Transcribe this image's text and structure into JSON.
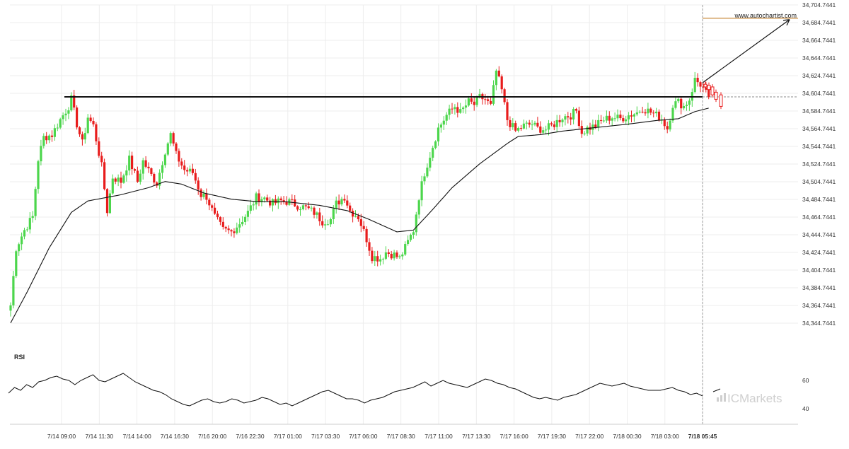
{
  "chart_data": {
    "type": "candlestick",
    "watermark_url": "www.autochartist.com",
    "brand": "ICMarkets",
    "colors": {
      "up": "#4CD64C",
      "down": "#E81C1C",
      "ma": "#111111",
      "resistance": "#111111",
      "forecast": "#111111",
      "target_marker": "#C88A3A",
      "rsi": "#111111",
      "grid": "#EDEDED",
      "axis_text": "#333333"
    },
    "price_axis": {
      "min": 34336.7441,
      "max": 34704.7441,
      "ticks": [
        "34,704.7441",
        "34,684.7441",
        "34,664.7441",
        "34,644.7441",
        "34,624.7441",
        "34,604.7441",
        "34,584.7441",
        "34,564.7441",
        "34,544.7441",
        "34,524.7441",
        "34,504.7441",
        "34,484.7441",
        "34,464.7441",
        "34,444.7441",
        "34,424.7441",
        "34,404.7441",
        "34,384.7441",
        "34,364.7441",
        "34,344.7441"
      ]
    },
    "time_axis": {
      "labels": [
        "7/14 09:00",
        "7/14 11:30",
        "7/14 14:00",
        "7/14 16:30",
        "7/16 20:00",
        "7/16 22:30",
        "7/17 01:00",
        "7/17 03:30",
        "7/17 06:00",
        "7/17 08:30",
        "7/17 11:00",
        "7/17 13:30",
        "7/17 16:00",
        "7/17 19:30",
        "7/17 22:00",
        "7/18 00:30",
        "7/18 03:00",
        "7/18 05:45"
      ],
      "highlight_label": "7/18 05:45"
    },
    "resistance_level": 34600.7441,
    "current_price": 34600.7441,
    "forecast_target": 34689.7441,
    "price_anchors": [
      [
        0,
        34365
      ],
      [
        2,
        34430
      ],
      [
        5,
        34450
      ],
      [
        8,
        34465
      ],
      [
        10,
        34530
      ],
      [
        12,
        34555
      ],
      [
        15,
        34558
      ],
      [
        18,
        34575
      ],
      [
        21,
        34590
      ],
      [
        22,
        34598
      ],
      [
        24,
        34570
      ],
      [
        26,
        34548
      ],
      [
        28,
        34578
      ],
      [
        30,
        34568
      ],
      [
        33,
        34522
      ],
      [
        35,
        34472
      ],
      [
        37,
        34510
      ],
      [
        40,
        34505
      ],
      [
        43,
        34530
      ],
      [
        46,
        34505
      ],
      [
        48,
        34528
      ],
      [
        51,
        34512
      ],
      [
        53,
        34503
      ],
      [
        56,
        34540
      ],
      [
        58,
        34558
      ],
      [
        60,
        34535
      ],
      [
        63,
        34518
      ],
      [
        66,
        34515
      ],
      [
        69,
        34490
      ],
      [
        71,
        34488
      ],
      [
        74,
        34465
      ],
      [
        77,
        34450
      ],
      [
        80,
        34448
      ],
      [
        83,
        34458
      ],
      [
        86,
        34470
      ],
      [
        89,
        34487
      ],
      [
        92,
        34486
      ],
      [
        95,
        34480
      ],
      [
        98,
        34483
      ],
      [
        101,
        34482
      ],
      [
        104,
        34478
      ],
      [
        107,
        34475
      ],
      [
        110,
        34470
      ],
      [
        113,
        34460
      ],
      [
        116,
        34462
      ],
      [
        118,
        34480
      ],
      [
        121,
        34488
      ],
      [
        123,
        34472
      ],
      [
        126,
        34465
      ],
      [
        129,
        34440
      ],
      [
        131,
        34420
      ],
      [
        134,
        34418
      ],
      [
        136,
        34425
      ],
      [
        139,
        34422
      ],
      [
        141,
        34418
      ],
      [
        143,
        34430
      ],
      [
        146,
        34450
      ],
      [
        148,
        34488
      ],
      [
        150,
        34515
      ],
      [
        152,
        34535
      ],
      [
        155,
        34565
      ],
      [
        158,
        34580
      ],
      [
        161,
        34590
      ],
      [
        163,
        34583
      ],
      [
        166,
        34595
      ],
      [
        168,
        34592
      ],
      [
        170,
        34600
      ],
      [
        172,
        34598
      ],
      [
        174,
        34590
      ],
      [
        176,
        34630
      ],
      [
        178,
        34608
      ],
      [
        180,
        34575
      ],
      [
        183,
        34562
      ],
      [
        186,
        34568
      ],
      [
        189,
        34570
      ],
      [
        191,
        34565
      ],
      [
        194,
        34564
      ],
      [
        197,
        34570
      ],
      [
        200,
        34578
      ],
      [
        203,
        34580
      ],
      [
        205,
        34585
      ],
      [
        207,
        34560
      ],
      [
        209,
        34565
      ],
      [
        212,
        34568
      ],
      [
        215,
        34575
      ],
      [
        218,
        34578
      ],
      [
        221,
        34576
      ],
      [
        224,
        34580
      ],
      [
        227,
        34583
      ],
      [
        229,
        34588
      ],
      [
        231,
        34585
      ],
      [
        234,
        34580
      ],
      [
        236,
        34576
      ],
      [
        238,
        34565
      ],
      [
        240,
        34592
      ],
      [
        242,
        34595
      ],
      [
        244,
        34590
      ],
      [
        246,
        34598
      ],
      [
        248,
        34620
      ],
      [
        250,
        34615
      ],
      [
        252,
        34605
      ],
      [
        253,
        34596
      ]
    ],
    "ma_anchors": [
      [
        0,
        34345
      ],
      [
        6,
        34380
      ],
      [
        14,
        34430
      ],
      [
        22,
        34470
      ],
      [
        28,
        34483
      ],
      [
        40,
        34490
      ],
      [
        50,
        34498
      ],
      [
        56,
        34505
      ],
      [
        62,
        34502
      ],
      [
        70,
        34492
      ],
      [
        80,
        34485
      ],
      [
        90,
        34482
      ],
      [
        100,
        34482
      ],
      [
        112,
        34478
      ],
      [
        122,
        34472
      ],
      [
        130,
        34462
      ],
      [
        140,
        34448
      ],
      [
        146,
        34450
      ],
      [
        152,
        34470
      ],
      [
        160,
        34498
      ],
      [
        170,
        34525
      ],
      [
        180,
        34548
      ],
      [
        184,
        34556
      ],
      [
        192,
        34558
      ],
      [
        200,
        34562
      ],
      [
        212,
        34566
      ],
      [
        224,
        34570
      ],
      [
        234,
        34574
      ],
      [
        242,
        34576
      ],
      [
        248,
        34584
      ],
      [
        253,
        34588
      ]
    ],
    "rsi": {
      "label": "RSI",
      "ticks": [
        "60",
        "40"
      ],
      "min": 34,
      "max": 70,
      "values": [
        51,
        55,
        53,
        57,
        55,
        59,
        60,
        62,
        63,
        61,
        60,
        57,
        60,
        62,
        64,
        60,
        59,
        61,
        63,
        65,
        62,
        59,
        57,
        55,
        53,
        52,
        50,
        47,
        45,
        43,
        42,
        44,
        46,
        47,
        45,
        44,
        45,
        47,
        46,
        44,
        45,
        46,
        48,
        47,
        45,
        43,
        44,
        42,
        44,
        46,
        48,
        50,
        52,
        53,
        51,
        49,
        47,
        47,
        46,
        44,
        46,
        47,
        48,
        50,
        52,
        53,
        54,
        55,
        57,
        59,
        56,
        58,
        60,
        58,
        57,
        56,
        55,
        57,
        59,
        61,
        60,
        58,
        57,
        55,
        54,
        52,
        50,
        48,
        47,
        48,
        47,
        46,
        48,
        49,
        50,
        52,
        54,
        56,
        58,
        57,
        56,
        57,
        58,
        56,
        55,
        54,
        53,
        53,
        53,
        54,
        55,
        53,
        52,
        50,
        51,
        49
      ]
    },
    "rsi_future": [
      52,
      54
    ]
  }
}
